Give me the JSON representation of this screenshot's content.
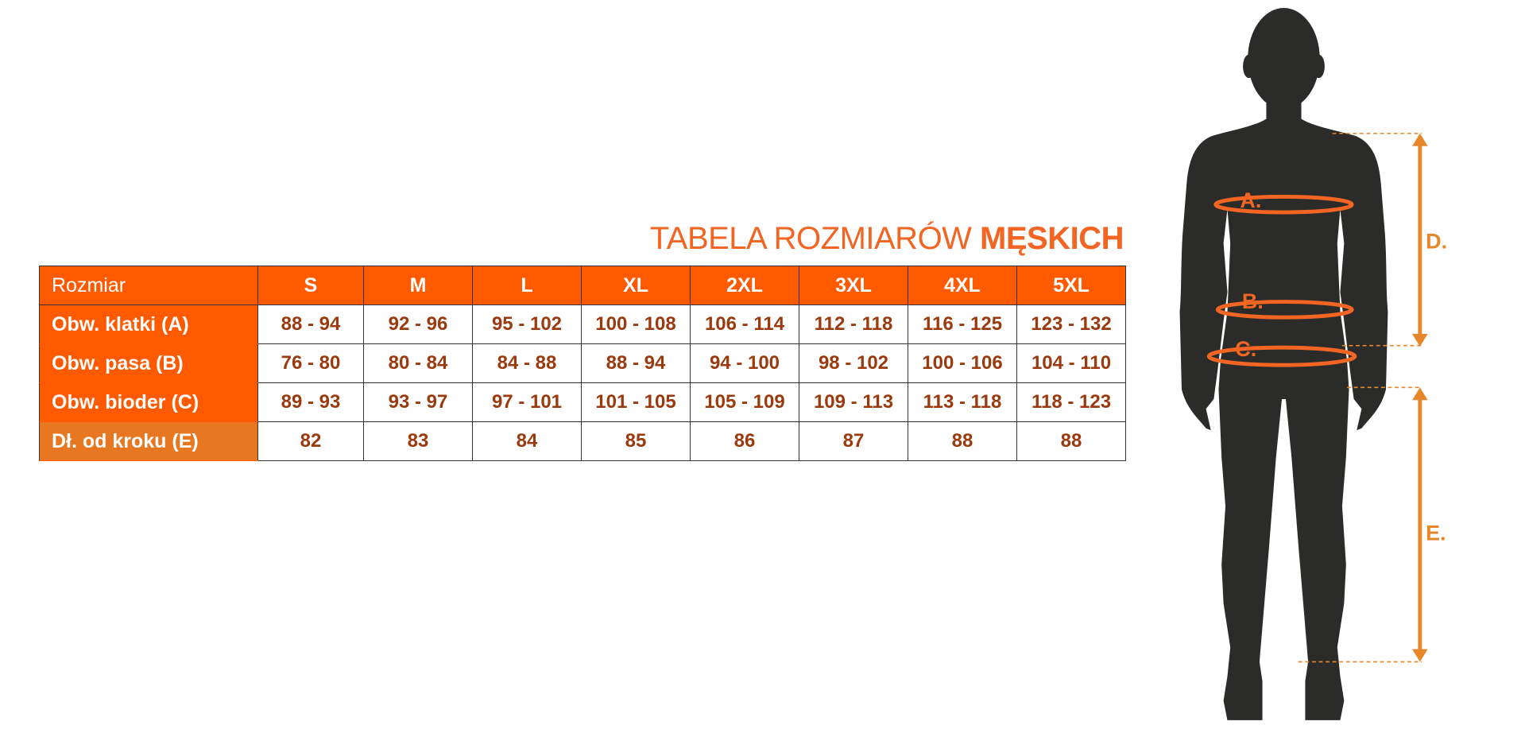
{
  "title": {
    "regular": "TABELA ROZMIARÓW ",
    "bold": "MĘSKICH"
  },
  "table": {
    "header_label": "Rozmiar",
    "sizes": [
      "S",
      "M",
      "L",
      "XL",
      "2XL",
      "3XL",
      "4XL",
      "5XL"
    ],
    "rows": [
      {
        "label": "Obw. klatki (A)",
        "values": [
          "88 - 94",
          "92 - 96",
          "95 - 102",
          "100 - 108",
          "106 - 114",
          "112 - 118",
          "116 - 125",
          "123 - 132"
        ]
      },
      {
        "label": "Obw. pasa (B)",
        "values": [
          "76 - 80",
          "80 - 84",
          "84 - 88",
          "88 - 94",
          "94 - 100",
          "98 - 102",
          "100 - 106",
          "104 - 110"
        ]
      },
      {
        "label": "Obw. bioder (C)",
        "values": [
          "89 - 93",
          "93 - 97",
          "97 - 101",
          "101 - 105",
          "105 - 109",
          "109 - 113",
          "113 - 118",
          "118 - 123"
        ]
      },
      {
        "label": "Dł. od kroku (E)",
        "values": [
          "82",
          "83",
          "84",
          "85",
          "86",
          "87",
          "88",
          "88"
        ]
      }
    ]
  },
  "figure": {
    "labels": {
      "a": "A.",
      "b": "B.",
      "c": "C.",
      "d": "D.",
      "e": "E."
    }
  },
  "colors": {
    "accent": "#FF5A00",
    "accent_light": "#E87722",
    "value_text": "#9A3A0E",
    "silhouette": "#2B2B2A"
  }
}
